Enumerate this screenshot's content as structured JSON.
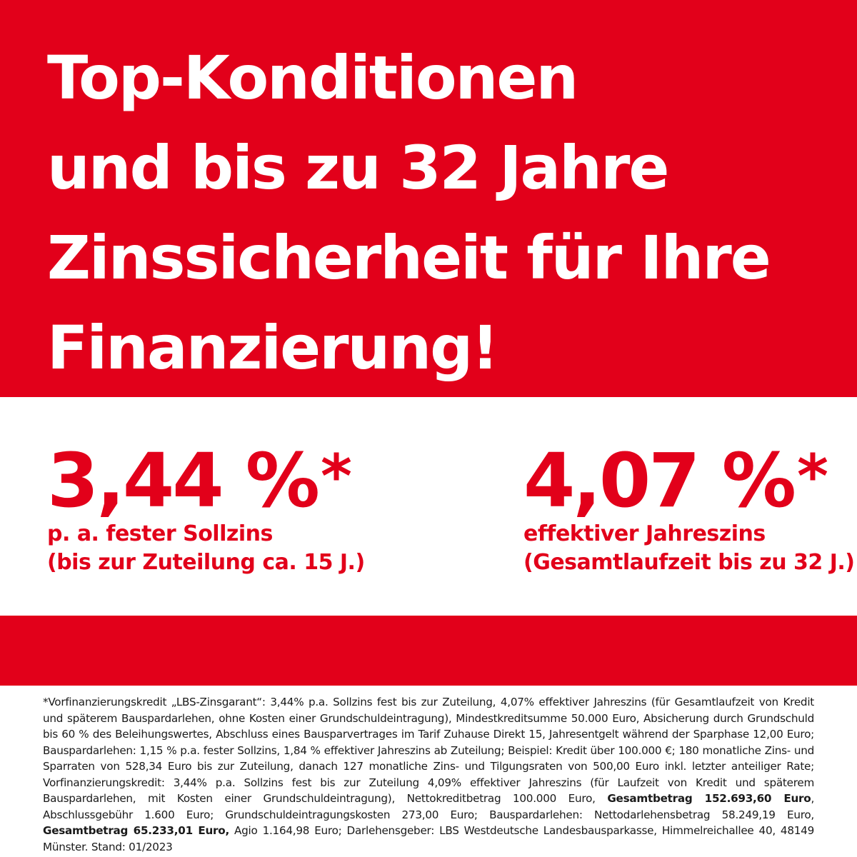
{
  "colors": {
    "brand_red": "#e2001a",
    "white": "#ffffff",
    "text_dark": "#1a1a1a"
  },
  "headline": {
    "lines": [
      "Top-Konditionen",
      "und bis zu 32 Jahre",
      "Zinssicherheit für Ihre",
      "Finanzierung!"
    ]
  },
  "rates": {
    "left": {
      "value": "3,44 %",
      "star": "*",
      "line1": "p. a. fester Sollzins",
      "line2": "(bis zur Zuteilung ca. 15 J.)"
    },
    "right": {
      "value": "4,07 %",
      "star": "*",
      "line1": "effektiver Jahreszins",
      "line2": "(Gesamtlaufzeit bis zu 32 J.)"
    }
  },
  "footnote": {
    "part1": "*Vorfinanzierungskredit „LBS-Zinsgarant“: 3,44% p.a. Sollzins fest bis zur Zuteilung, 4,07% effektiver Jahreszins (für Gesamtlaufzeit von Kredit und späterem Bauspardarlehen, ohne Kosten einer Grundschuldeintragung), Mindestkreditsumme 50.000 Euro, Absicherung durch Grundschuld bis 60 % des Beleihungswertes, Abschluss eines Bausparvertrages im Tarif Zuhause Direkt 15, Jahresentgelt während der Sparphase 12,00 Euro; Bauspardarlehen: 1,15 % p.a. fester Sollzins, 1,84 % effektiver Jahreszins ab Zuteilung; Beispiel: Kredit über 100.000 €; 180 monatliche Zins- und Sparraten von 528,34 Euro bis zur Zuteilung, danach 127 monatliche Zins- und Tilgungsraten von 500,00 Euro inkl. letzter anteiliger Rate; Vorfinanzierungskredit: 3,44% p.a. Sollzins fest bis zur Zuteilung 4,09% effektiver Jahreszins (für Laufzeit von Kredit und späterem Bauspardarlehen, mit Kosten einer Grundschuldeintragung), Nettokreditbetrag 100.000 Euro, ",
    "bold1": "Gesamtbetrag 152.693,60 Euro",
    "part2": ", Abschlussgebühr 1.600 Euro; Grundschuldeintragungskosten 273,00 Euro; Bauspardarlehen: Nettodarlehensbetrag 58.249,19 Euro, ",
    "bold2": "Gesamtbetrag 65.233,01 Euro,",
    "part3": " Agio 1.164,98 Euro; Darlehensgeber: LBS Westdeutsche Landesbausparkasse, Himmelreichallee 40, 48149 Münster. Stand: 01/2023"
  }
}
